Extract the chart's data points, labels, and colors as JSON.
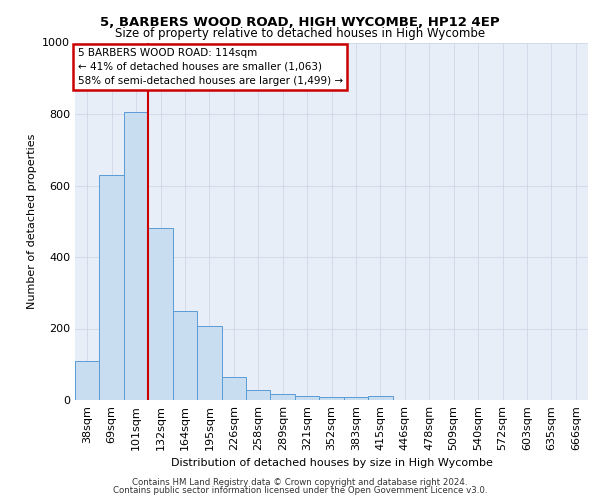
{
  "title1": "5, BARBERS WOOD ROAD, HIGH WYCOMBE, HP12 4EP",
  "title2": "Size of property relative to detached houses in High Wycombe",
  "xlabel": "Distribution of detached houses by size in High Wycombe",
  "ylabel": "Number of detached properties",
  "bar_labels": [
    "38sqm",
    "69sqm",
    "101sqm",
    "132sqm",
    "164sqm",
    "195sqm",
    "226sqm",
    "258sqm",
    "289sqm",
    "321sqm",
    "352sqm",
    "383sqm",
    "415sqm",
    "446sqm",
    "478sqm",
    "509sqm",
    "540sqm",
    "572sqm",
    "603sqm",
    "635sqm",
    "666sqm"
  ],
  "bar_values": [
    110,
    630,
    805,
    480,
    250,
    207,
    63,
    27,
    17,
    10,
    8,
    8,
    10,
    0,
    0,
    0,
    0,
    0,
    0,
    0,
    0
  ],
  "bar_color": "#c9ddf0",
  "bar_edge_color": "#5b9bd5",
  "grid_color": "#d0d8e8",
  "bg_color": "#e8eef8",
  "red_line_x": 2.5,
  "annotation_text": "5 BARBERS WOOD ROAD: 114sqm\n← 41% of detached houses are smaller (1,063)\n58% of semi-detached houses are larger (1,499) →",
  "annotation_box_color": "#ffffff",
  "annotation_border_color": "#cc0000",
  "ylim": [
    0,
    1000
  ],
  "footer1": "Contains HM Land Registry data © Crown copyright and database right 2024.",
  "footer2": "Contains public sector information licensed under the Open Government Licence v3.0."
}
